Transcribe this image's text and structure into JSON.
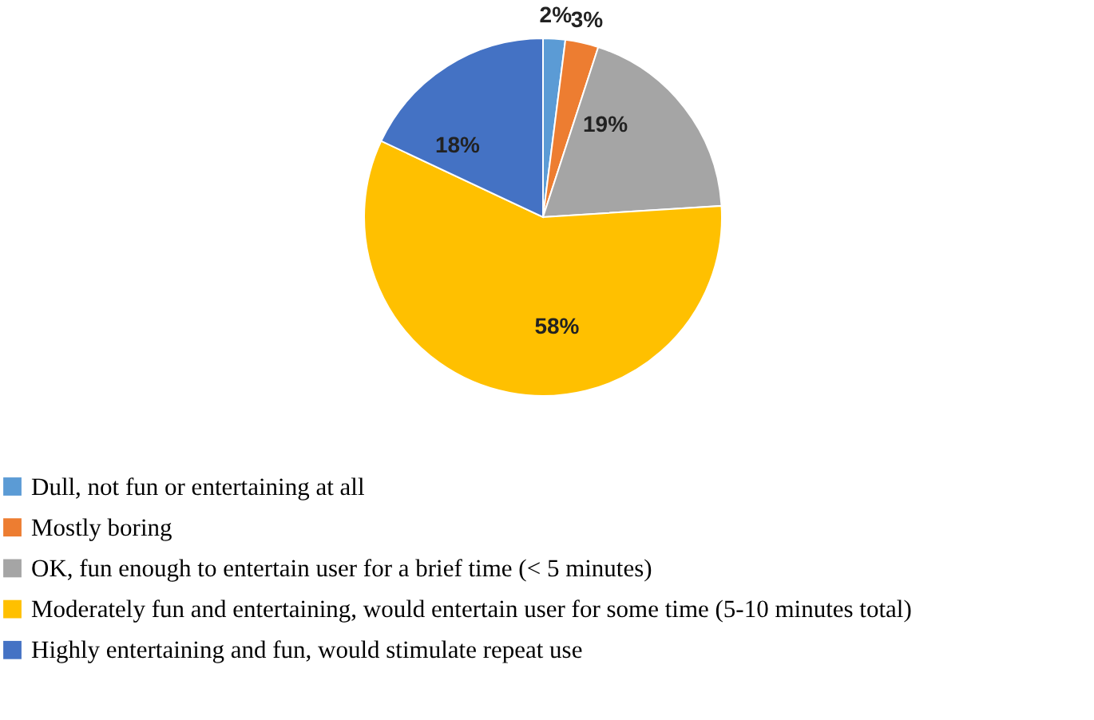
{
  "chart_data": {
    "type": "pie",
    "categories": [
      "Dull, not fun or entertaining at all",
      "Mostly boring",
      "OK, fun enough to entertain user for a brief time (< 5 minutes)",
      "Moderately fun and entertaining, would entertain user for some time (5-10 minutes total)",
      "Highly entertaining and fun, would stimulate repeat use"
    ],
    "values": [
      2,
      3,
      19,
      58,
      18
    ],
    "value_labels": [
      "2%",
      "3%",
      "19%",
      "58%",
      "18%"
    ],
    "colors": [
      "#5b9bd5",
      "#ed7d31",
      "#a5a5a5",
      "#ffc000",
      "#4472c4"
    ],
    "legend": "bottom"
  }
}
